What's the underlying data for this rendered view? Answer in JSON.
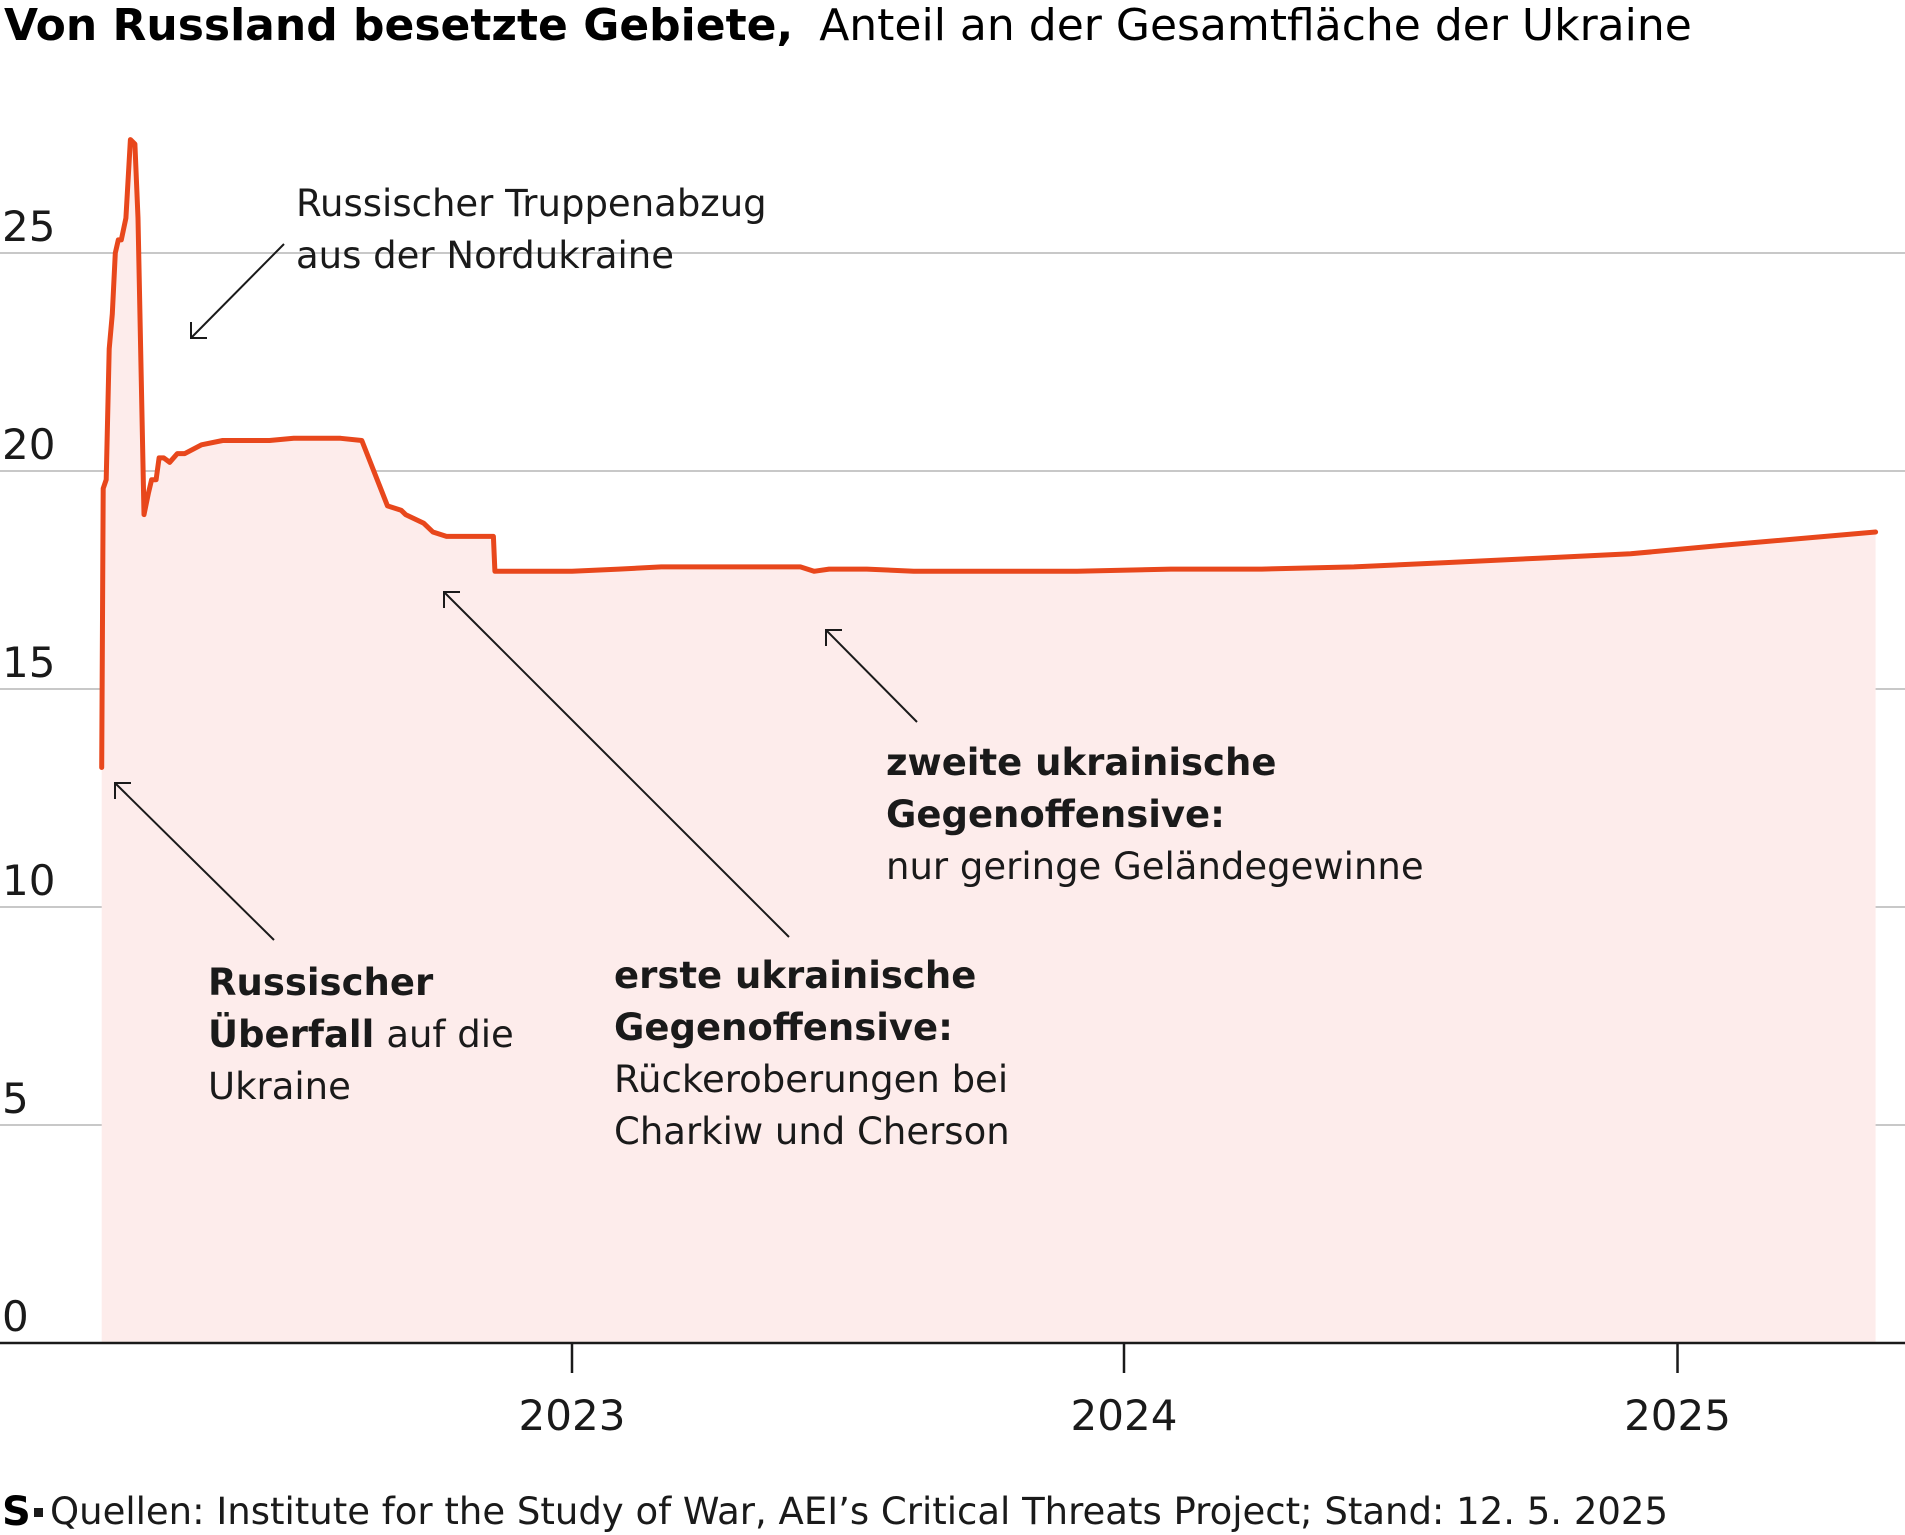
{
  "title": {
    "bold": "Von Russland besetzte Gebiete,",
    "normal": "Anteil an der Gesamtfläche der Ukraine"
  },
  "chart_data": {
    "type": "area",
    "title": "Von Russland besetzte Gebiete, Anteil an der Gesamtfläche der Ukraine",
    "xlabel": "",
    "ylabel": "",
    "ylim": [
      0,
      27
    ],
    "yticks": [
      "0",
      "5",
      "10",
      "15",
      "20",
      "25"
    ],
    "xticks": [
      "2023",
      "2024",
      "2025"
    ],
    "grid": true,
    "x": [
      "2022-02-24",
      "2022-02-25",
      "2022-02-27",
      "2022-03-01",
      "2022-03-03",
      "2022-03-05",
      "2022-03-07",
      "2022-03-09",
      "2022-03-12",
      "2022-03-15",
      "2022-03-18",
      "2022-03-20",
      "2022-03-24",
      "2022-03-27",
      "2022-03-29",
      "2022-04-01",
      "2022-04-03",
      "2022-04-06",
      "2022-04-10",
      "2022-04-15",
      "2022-04-20",
      "2022-05-01",
      "2022-05-15",
      "2022-06-01",
      "2022-06-15",
      "2022-07-01",
      "2022-07-15",
      "2022-08-01",
      "2022-08-15",
      "2022-09-01",
      "2022-09-10",
      "2022-09-13",
      "2022-09-25",
      "2022-10-01",
      "2022-10-10",
      "2022-10-15",
      "2022-11-01",
      "2022-11-10",
      "2022-11-11",
      "2022-12-01",
      "2023-01-01",
      "2023-02-01",
      "2023-03-01",
      "2023-04-01",
      "2023-05-01",
      "2023-06-01",
      "2023-06-10",
      "2023-06-20",
      "2023-07-15",
      "2023-08-15",
      "2023-10-01",
      "2023-12-01",
      "2024-02-01",
      "2024-04-01",
      "2024-06-01",
      "2024-08-01",
      "2024-10-01",
      "2024-12-01",
      "2025-02-01",
      "2025-05-12"
    ],
    "series": [
      {
        "values": [
          13.2,
          19.6,
          19.8,
          22.8,
          23.6,
          25.0,
          25.3,
          25.3,
          25.8,
          27.6,
          27.5,
          25.8,
          19.0,
          19.5,
          19.8,
          19.8,
          20.3,
          20.3,
          20.2,
          20.4,
          20.4,
          20.6,
          20.7,
          20.7,
          20.7,
          20.75,
          20.75,
          20.75,
          20.7,
          19.2,
          19.1,
          19.0,
          18.8,
          18.6,
          18.5,
          18.5,
          18.5,
          18.5,
          17.7,
          17.7,
          17.7,
          17.75,
          17.8,
          17.8,
          17.8,
          17.8,
          17.7,
          17.75,
          17.75,
          17.7,
          17.7,
          17.7,
          17.75,
          17.75,
          17.8,
          17.9,
          18.0,
          18.1,
          18.3,
          18.6
        ]
      }
    ],
    "colors": {
      "line": "#e8471c",
      "fill": "#fdeceb"
    },
    "annotations": [
      {
        "lines": [
          "Russischer Truppenabzug",
          "aus der Nordukraine"
        ]
      },
      {
        "bold": [
          "Russischer",
          "Überfall"
        ],
        "normal": [
          "auf die",
          "Ukraine"
        ]
      },
      {
        "bold": [
          "erste ukrainische",
          "Gegenoffensive:"
        ],
        "normal": [
          "Rückeroberungen bei",
          "Charkiw und Cherson"
        ]
      },
      {
        "bold": [
          "zweite ukrainische",
          "Gegenoffensive:"
        ],
        "normal": [
          "nur geringe Geländegewinne"
        ]
      }
    ]
  },
  "source": {
    "logo": "S",
    "text": "Quellen: Institute for the Study of War, AEI’s Critical Threats Project; Stand: 12. 5. 2025"
  }
}
